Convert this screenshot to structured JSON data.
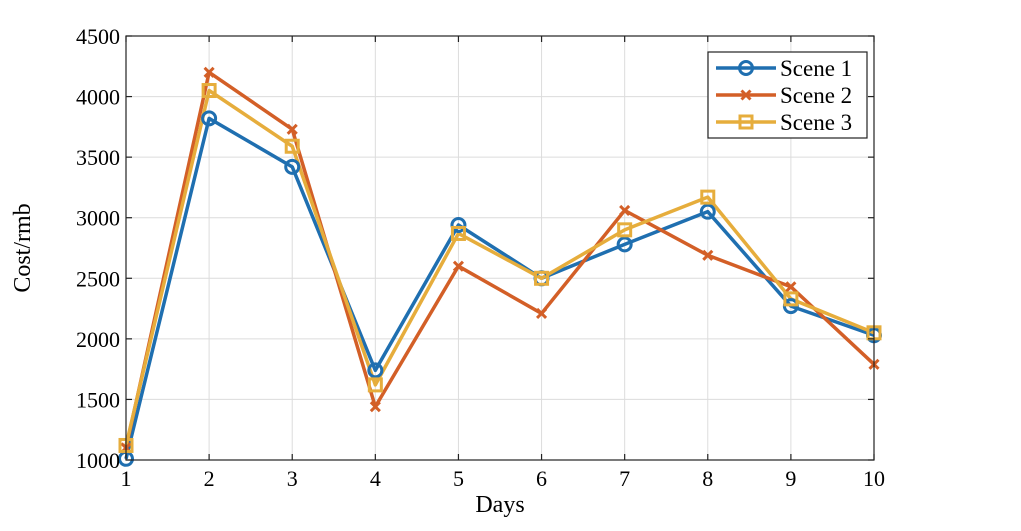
{
  "chart_data": {
    "type": "line",
    "xlabel": "Days",
    "ylabel": "Cost/rmb",
    "x": [
      1,
      2,
      3,
      4,
      5,
      6,
      7,
      8,
      9,
      10
    ],
    "xlim": [
      1,
      10
    ],
    "ylim": [
      1000,
      4500
    ],
    "xticks": [
      "1",
      "2",
      "3",
      "4",
      "5",
      "6",
      "7",
      "8",
      "9",
      "10"
    ],
    "yticks": [
      "1000",
      "1500",
      "2000",
      "2500",
      "3000",
      "3500",
      "4000",
      "4500"
    ],
    "grid": true,
    "legend_position": "top-right",
    "series": [
      {
        "name": "Scene 1",
        "color": "#1f6fb0",
        "marker": "circle",
        "values": [
          1010,
          3820,
          3420,
          1740,
          2940,
          2500,
          2780,
          3050,
          2270,
          2030
        ]
      },
      {
        "name": "Scene 2",
        "color": "#d35f27",
        "marker": "x",
        "values": [
          1100,
          4200,
          3730,
          1440,
          2600,
          2210,
          3060,
          2690,
          2430,
          1790
        ]
      },
      {
        "name": "Scene 3",
        "color": "#e6ad3c",
        "marker": "square",
        "values": [
          1120,
          4050,
          3590,
          1620,
          2870,
          2500,
          2900,
          3170,
          2330,
          2050
        ]
      }
    ]
  }
}
